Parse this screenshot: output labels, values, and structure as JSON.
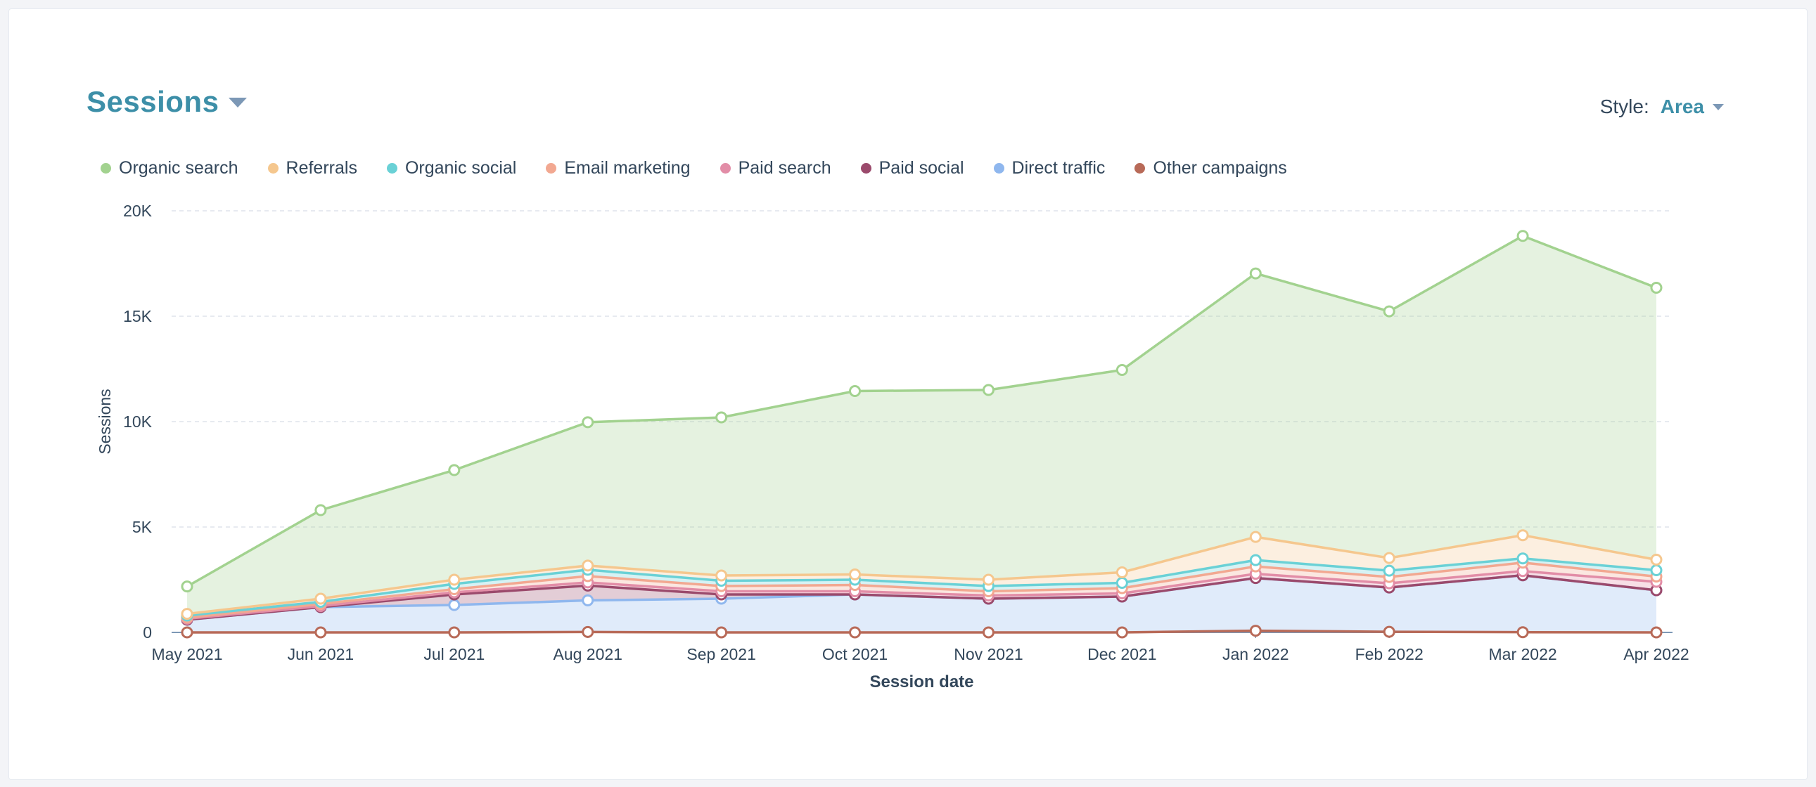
{
  "header": {
    "title": "Sessions",
    "style_label": "Style:",
    "style_value": "Area"
  },
  "chart_data": {
    "type": "area",
    "stacked": true,
    "x": [
      "May 2021",
      "Jun 2021",
      "Jul 2021",
      "Aug 2021",
      "Sep 2021",
      "Oct 2021",
      "Nov 2021",
      "Dec 2021",
      "Jan 2022",
      "Feb 2022",
      "Mar 2022",
      "Apr 2022"
    ],
    "xlabel": "Session date",
    "ylabel": "Sessions",
    "ylim": [
      0,
      20000
    ],
    "yticks": [
      0,
      5000,
      10000,
      15000,
      20000
    ],
    "ytick_labels": [
      "0",
      "5K",
      "10K",
      "15K",
      "20K"
    ],
    "grid": true,
    "legend_position": "top-left",
    "series": [
      {
        "name": "Organic search",
        "color": "#a2d28f",
        "values": [
          1300,
          4200,
          5200,
          6800,
          7500,
          8700,
          9000,
          9600,
          12500,
          11700,
          14200,
          12900
        ]
      },
      {
        "name": "Referrals",
        "color": "#f5c78e",
        "values": [
          80,
          150,
          200,
          200,
          250,
          250,
          300,
          500,
          1100,
          600,
          1100,
          500
        ]
      },
      {
        "name": "Organic social",
        "color": "#6ad1d6",
        "values": [
          100,
          100,
          250,
          300,
          250,
          250,
          250,
          250,
          300,
          300,
          200,
          300
        ]
      },
      {
        "name": "Email marketing",
        "color": "#f2a891",
        "values": [
          50,
          100,
          150,
          300,
          250,
          300,
          200,
          250,
          350,
          300,
          400,
          250
        ]
      },
      {
        "name": "Paid search",
        "color": "#e28da7",
        "values": [
          50,
          50,
          100,
          150,
          150,
          150,
          150,
          150,
          200,
          200,
          200,
          400
        ]
      },
      {
        "name": "Paid social",
        "color": "#9b4a6c",
        "values": [
          0,
          0,
          500,
          700,
          200,
          0,
          0,
          0,
          0,
          0,
          0,
          0
        ]
      },
      {
        "name": "Direct traffic",
        "color": "#8fb7ee",
        "values": [
          600,
          1200,
          1300,
          1500,
          1600,
          1800,
          1600,
          1700,
          2500,
          2100,
          2700,
          2000
        ]
      },
      {
        "name": "Other campaigns",
        "color": "#b86a58",
        "values": [
          0,
          0,
          0,
          20,
          0,
          0,
          0,
          0,
          80,
          30,
          10,
          0
        ]
      }
    ]
  }
}
